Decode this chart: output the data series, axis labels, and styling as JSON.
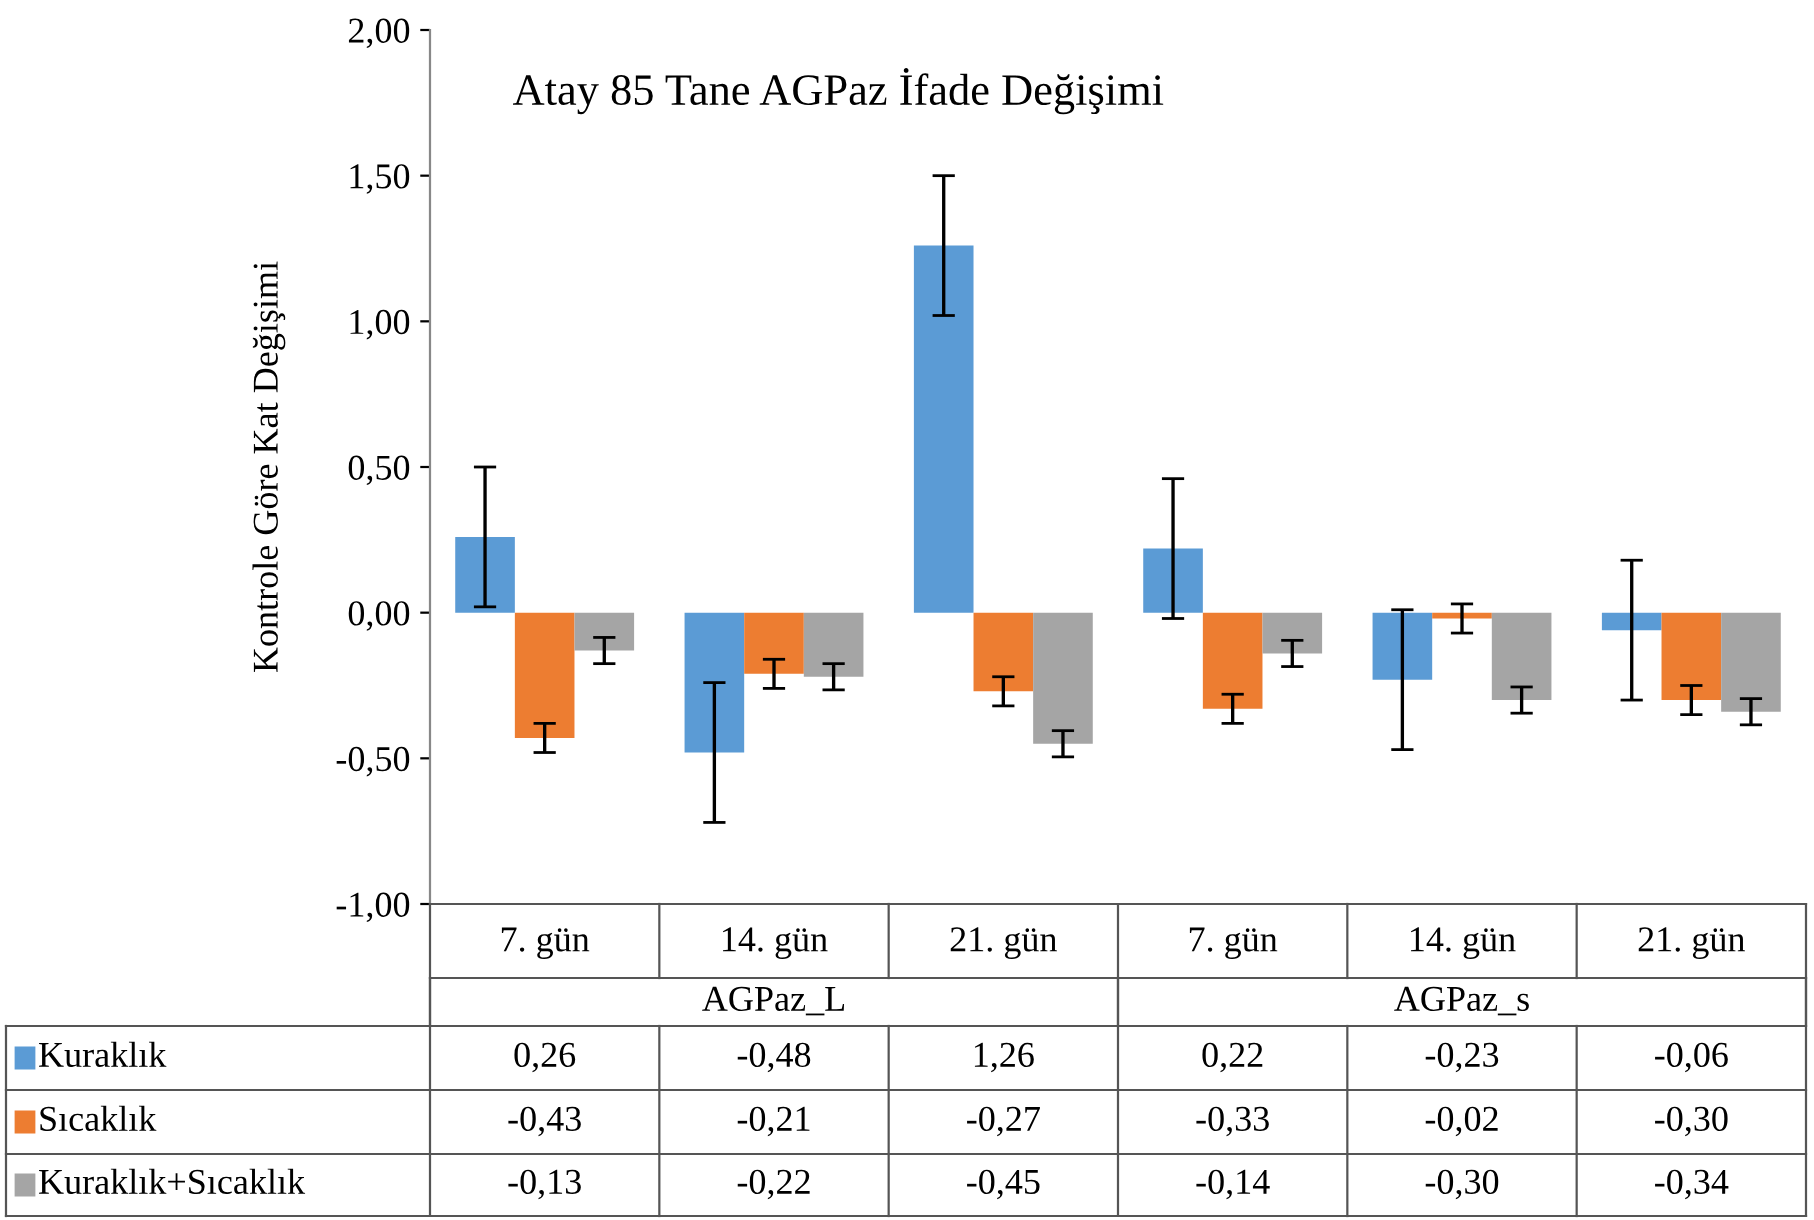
{
  "chart_data": {
    "type": "bar",
    "title": "Atay 85 Tane AGPaz İfade Değişimi",
    "ylabel": "Kontrole Göre Kat Değişimi",
    "categories": [
      "7. gün",
      "14. gün",
      "21. gün",
      "7. gün",
      "14. gün",
      "21. gün"
    ],
    "annotations": [
      "AGPaz_L",
      "AGPaz_s"
    ],
    "series": [
      {
        "name": "Kuraklık",
        "color": "#5b9bd5",
        "values": [
          0.26,
          -0.48,
          1.26,
          0.22,
          -0.23,
          -0.06
        ],
        "errors": [
          0.24,
          0.24,
          0.24,
          0.24,
          0.24,
          0.24
        ],
        "value_labels": [
          "0,26",
          "-0,48",
          "1,26",
          "0,22",
          "-0,23",
          "-0,06"
        ]
      },
      {
        "name": "Sıcaklık",
        "color": "#ed7d31",
        "values": [
          -0.43,
          -0.21,
          -0.27,
          -0.33,
          -0.02,
          -0.3
        ],
        "errors": [
          0.05,
          0.05,
          0.05,
          0.05,
          0.05,
          0.05
        ],
        "value_labels": [
          "-0,43",
          "-0,21",
          "-0,27",
          "-0,33",
          "-0,02",
          "-0,30"
        ]
      },
      {
        "name": "Kuraklık+Sıcaklık",
        "color": "#a5a5a5",
        "values": [
          -0.13,
          -0.22,
          -0.45,
          -0.14,
          -0.3,
          -0.34
        ],
        "errors": [
          0.045,
          0.045,
          0.045,
          0.045,
          0.045,
          0.045
        ],
        "value_labels": [
          "-0,13",
          "-0,22",
          "-0,45",
          "-0,14",
          "-0,30",
          "-0,34"
        ]
      }
    ],
    "ylim": [
      -1,
      2
    ],
    "yticks": [
      {
        "value": -1,
        "label": "-1,00"
      },
      {
        "value": -0.5,
        "label": "-0,50"
      },
      {
        "value": 0,
        "label": "0,00"
      },
      {
        "value": 0.5,
        "label": "0,50"
      },
      {
        "value": 1,
        "label": "1,00"
      },
      {
        "value": 1.5,
        "label": "1,50"
      },
      {
        "value": 2,
        "label": "2,00"
      }
    ],
    "grid": false,
    "legend": "bottom left"
  }
}
